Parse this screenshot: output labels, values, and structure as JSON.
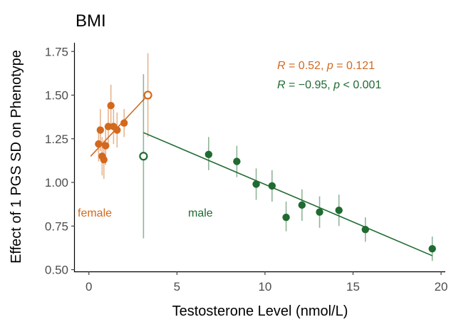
{
  "chart_data": {
    "type": "scatter",
    "title": "BMI",
    "xlabel": "Testosterone Level (nmol/L)",
    "ylabel": "Effect of 1 PGS SD on Phenotype",
    "xlim": [
      -0.8,
      20.2
    ],
    "ylim": [
      0.49,
      1.8
    ],
    "x_ticks": [
      0,
      5,
      10,
      15,
      20
    ],
    "x_tick_labels": [
      "0",
      "5",
      "10",
      "15",
      "20"
    ],
    "y_ticks": [
      0.5,
      0.75,
      1.0,
      1.25,
      1.5,
      1.75
    ],
    "y_tick_labels": [
      "0.50",
      "0.75",
      "1.00",
      "1.25",
      "1.50",
      "1.75"
    ],
    "grid": false,
    "series": [
      {
        "name": "female",
        "color": "#d2691e",
        "points": [
          {
            "x": 0.55,
            "y": 1.22,
            "lo": 1.12,
            "hi": 1.32
          },
          {
            "x": 0.65,
            "y": 1.3,
            "lo": 1.18,
            "hi": 1.42
          },
          {
            "x": 0.75,
            "y": 1.15,
            "lo": 1.04,
            "hi": 1.26
          },
          {
            "x": 0.85,
            "y": 1.13,
            "lo": 1.02,
            "hi": 1.24
          },
          {
            "x": 0.95,
            "y": 1.21,
            "lo": 1.1,
            "hi": 1.32
          },
          {
            "x": 1.1,
            "y": 1.32,
            "lo": 1.21,
            "hi": 1.43
          },
          {
            "x": 1.25,
            "y": 1.44,
            "lo": 1.32,
            "hi": 1.56
          },
          {
            "x": 1.4,
            "y": 1.32,
            "lo": 1.22,
            "hi": 1.42
          },
          {
            "x": 1.6,
            "y": 1.3,
            "lo": 1.2,
            "hi": 1.4
          },
          {
            "x": 2.0,
            "y": 1.34,
            "lo": 1.26,
            "hi": 1.42
          },
          {
            "x": 3.35,
            "y": 1.5,
            "lo": 1.26,
            "hi": 1.74,
            "hollow": true
          }
        ],
        "fit": {
          "x": [
            0.1,
            3.35
          ],
          "y": [
            1.15,
            1.5
          ]
        },
        "label": "female"
      },
      {
        "name": "male",
        "color": "#1f6b31",
        "points": [
          {
            "x": 3.1,
            "y": 1.15,
            "lo": 0.68,
            "hi": 1.62,
            "hollow": true
          },
          {
            "x": 6.8,
            "y": 1.16,
            "lo": 1.07,
            "hi": 1.26
          },
          {
            "x": 8.4,
            "y": 1.12,
            "lo": 1.03,
            "hi": 1.21
          },
          {
            "x": 9.5,
            "y": 0.99,
            "lo": 0.9,
            "hi": 1.08
          },
          {
            "x": 10.4,
            "y": 0.98,
            "lo": 0.89,
            "hi": 1.07
          },
          {
            "x": 11.2,
            "y": 0.8,
            "lo": 0.72,
            "hi": 0.89
          },
          {
            "x": 12.1,
            "y": 0.87,
            "lo": 0.78,
            "hi": 0.96
          },
          {
            "x": 13.1,
            "y": 0.83,
            "lo": 0.74,
            "hi": 0.92
          },
          {
            "x": 14.2,
            "y": 0.84,
            "lo": 0.75,
            "hi": 0.93
          },
          {
            "x": 15.7,
            "y": 0.73,
            "lo": 0.66,
            "hi": 0.8
          },
          {
            "x": 19.5,
            "y": 0.62,
            "lo": 0.55,
            "hi": 0.69
          }
        ],
        "fit": {
          "x": [
            3.1,
            19.5
          ],
          "y": [
            1.285,
            0.58
          ]
        },
        "label": "male"
      }
    ],
    "annotations": {
      "female_stat": {
        "R": "R",
        "r_value": " = 0.52, ",
        "p": "p",
        "p_value": " = 0.121"
      },
      "male_stat": {
        "R": "R",
        "r_value": " = −0.95, ",
        "p": "p",
        "p_value": " < 0.001"
      }
    }
  }
}
